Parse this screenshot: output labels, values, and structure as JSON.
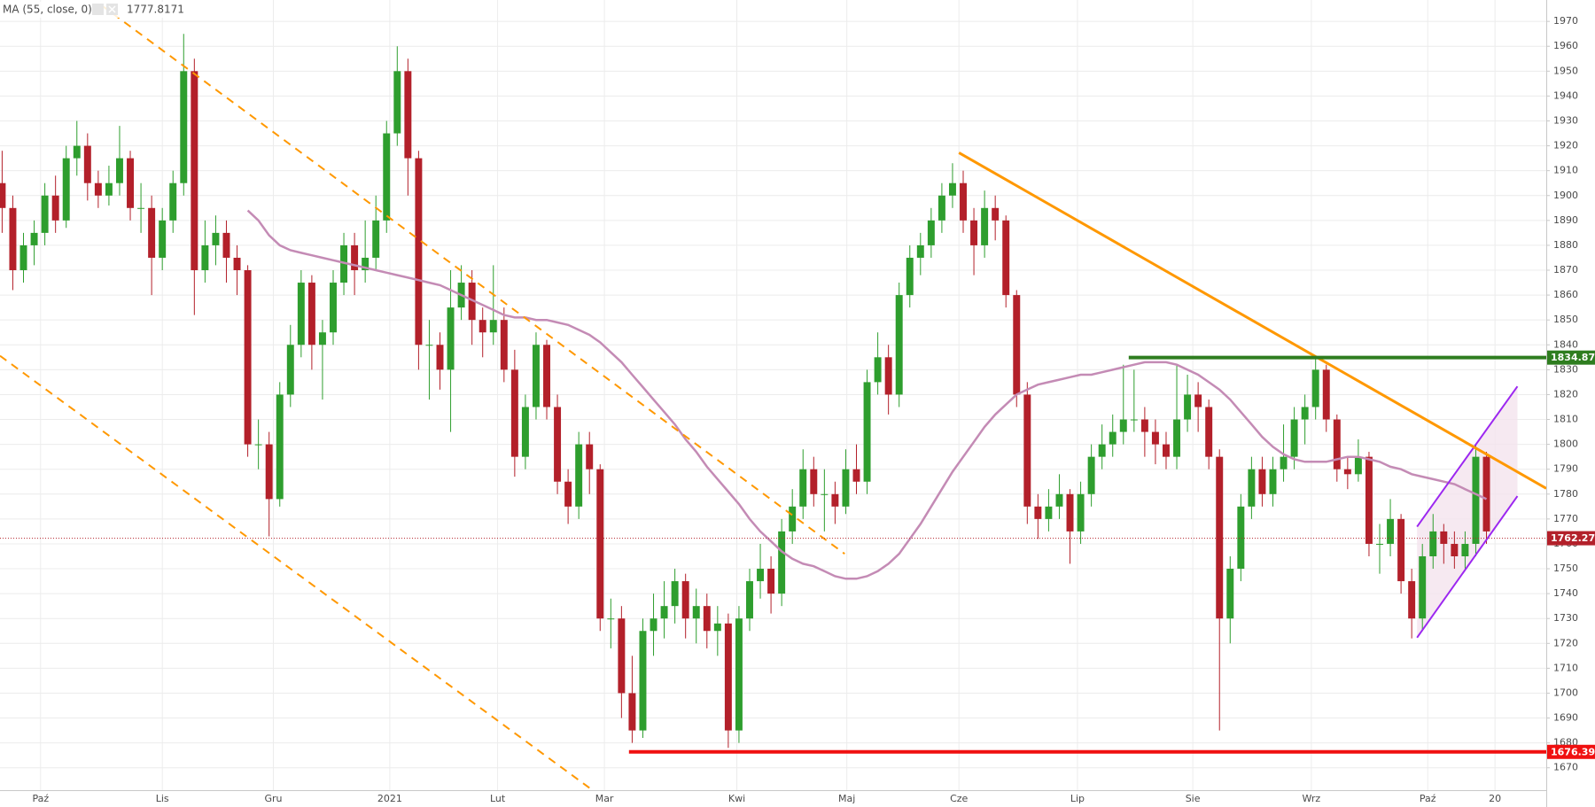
{
  "chart_data": {
    "type": "candlestick",
    "up_color": "#2e9e2e",
    "down_color": "#b3202a",
    "ylim": [
      1661,
      1978.6
    ],
    "yticks": [
      1670,
      1680,
      1690,
      1700,
      1710,
      1720,
      1730,
      1740,
      1750,
      1760,
      1770,
      1780,
      1790,
      1800,
      1810,
      1820,
      1830,
      1840,
      1850,
      1860,
      1870,
      1880,
      1890,
      1900,
      1910,
      1920,
      1930,
      1940,
      1950,
      1960,
      1970
    ],
    "xlim": [
      -0.2,
      144.6
    ],
    "xticks": [
      {
        "value": 3.6,
        "label": "Paź"
      },
      {
        "value": 15,
        "label": "Lis"
      },
      {
        "value": 25.4,
        "label": "Gru"
      },
      {
        "value": 36.3,
        "label": "2021"
      },
      {
        "value": 46.4,
        "label": "Lut"
      },
      {
        "value": 56.4,
        "label": "Mar"
      },
      {
        "value": 68.8,
        "label": "Kwi"
      },
      {
        "value": 79.1,
        "label": "Maj"
      },
      {
        "value": 89.6,
        "label": "Cze"
      },
      {
        "value": 100.7,
        "label": "Lip"
      },
      {
        "value": 111.5,
        "label": "Sie"
      },
      {
        "value": 122.6,
        "label": "Wrz"
      },
      {
        "value": 133.5,
        "label": "Paź"
      },
      {
        "value": 139.8,
        "label": "20"
      }
    ],
    "grid": true,
    "ohlc": [
      [
        1905,
        1918,
        1885,
        1895
      ],
      [
        1895,
        1900,
        1862,
        1870
      ],
      [
        1870,
        1885,
        1865,
        1880
      ],
      [
        1880,
        1890,
        1872,
        1885
      ],
      [
        1885,
        1905,
        1880,
        1900
      ],
      [
        1900,
        1908,
        1885,
        1890
      ],
      [
        1890,
        1920,
        1887,
        1915
      ],
      [
        1915,
        1930,
        1908,
        1920
      ],
      [
        1920,
        1925,
        1898,
        1905
      ],
      [
        1905,
        1910,
        1895,
        1900
      ],
      [
        1900,
        1912,
        1896,
        1905
      ],
      [
        1905,
        1928,
        1900,
        1915
      ],
      [
        1915,
        1918,
        1890,
        1895
      ],
      [
        1895,
        1905,
        1885,
        1895
      ],
      [
        1895,
        1900,
        1860,
        1875
      ],
      [
        1875,
        1895,
        1870,
        1890
      ],
      [
        1890,
        1910,
        1885,
        1905
      ],
      [
        1905,
        1965,
        1900,
        1950
      ],
      [
        1950,
        1955,
        1852,
        1870
      ],
      [
        1870,
        1890,
        1865,
        1880
      ],
      [
        1880,
        1892,
        1872,
        1885
      ],
      [
        1885,
        1890,
        1865,
        1875
      ],
      [
        1875,
        1880,
        1860,
        1870
      ],
      [
        1870,
        1872,
        1795,
        1800
      ],
      [
        1800,
        1810,
        1790,
        1800
      ],
      [
        1800,
        1805,
        1763,
        1778
      ],
      [
        1778,
        1825,
        1775,
        1820
      ],
      [
        1820,
        1848,
        1815,
        1840
      ],
      [
        1840,
        1870,
        1835,
        1865
      ],
      [
        1865,
        1868,
        1830,
        1840
      ],
      [
        1840,
        1850,
        1818,
        1845
      ],
      [
        1845,
        1870,
        1840,
        1865
      ],
      [
        1865,
        1885,
        1860,
        1880
      ],
      [
        1880,
        1885,
        1860,
        1870
      ],
      [
        1870,
        1890,
        1865,
        1875
      ],
      [
        1875,
        1900,
        1870,
        1890
      ],
      [
        1890,
        1930,
        1885,
        1925
      ],
      [
        1925,
        1960,
        1920,
        1950
      ],
      [
        1950,
        1955,
        1900,
        1915
      ],
      [
        1915,
        1918,
        1830,
        1840
      ],
      [
        1840,
        1850,
        1818,
        1840
      ],
      [
        1840,
        1845,
        1822,
        1830
      ],
      [
        1830,
        1870,
        1805,
        1855
      ],
      [
        1855,
        1872,
        1850,
        1865
      ],
      [
        1865,
        1870,
        1840,
        1850
      ],
      [
        1850,
        1855,
        1835,
        1845
      ],
      [
        1845,
        1872,
        1840,
        1850
      ],
      [
        1850,
        1855,
        1825,
        1830
      ],
      [
        1830,
        1838,
        1787,
        1795
      ],
      [
        1795,
        1820,
        1790,
        1815
      ],
      [
        1815,
        1845,
        1810,
        1840
      ],
      [
        1840,
        1842,
        1810,
        1815
      ],
      [
        1815,
        1820,
        1780,
        1785
      ],
      [
        1785,
        1790,
        1768,
        1775
      ],
      [
        1775,
        1805,
        1770,
        1800
      ],
      [
        1800,
        1805,
        1780,
        1790
      ],
      [
        1790,
        1792,
        1725,
        1730
      ],
      [
        1730,
        1738,
        1718,
        1730
      ],
      [
        1730,
        1735,
        1690,
        1700
      ],
      [
        1700,
        1715,
        1680,
        1685
      ],
      [
        1685,
        1730,
        1682,
        1725
      ],
      [
        1725,
        1740,
        1715,
        1730
      ],
      [
        1730,
        1745,
        1722,
        1735
      ],
      [
        1735,
        1750,
        1728,
        1745
      ],
      [
        1745,
        1748,
        1722,
        1730
      ],
      [
        1730,
        1742,
        1720,
        1735
      ],
      [
        1735,
        1740,
        1718,
        1725
      ],
      [
        1725,
        1735,
        1715,
        1728
      ],
      [
        1728,
        1732,
        1678,
        1685
      ],
      [
        1685,
        1735,
        1680,
        1730
      ],
      [
        1730,
        1750,
        1725,
        1745
      ],
      [
        1745,
        1760,
        1738,
        1750
      ],
      [
        1750,
        1755,
        1732,
        1740
      ],
      [
        1740,
        1770,
        1735,
        1765
      ],
      [
        1765,
        1782,
        1760,
        1775
      ],
      [
        1775,
        1798,
        1770,
        1790
      ],
      [
        1790,
        1795,
        1775,
        1780
      ],
      [
        1780,
        1790,
        1765,
        1780
      ],
      [
        1780,
        1785,
        1768,
        1775
      ],
      [
        1775,
        1798,
        1772,
        1790
      ],
      [
        1790,
        1800,
        1780,
        1785
      ],
      [
        1785,
        1830,
        1780,
        1825
      ],
      [
        1825,
        1845,
        1820,
        1835
      ],
      [
        1835,
        1840,
        1812,
        1820
      ],
      [
        1820,
        1865,
        1815,
        1860
      ],
      [
        1860,
        1880,
        1855,
        1875
      ],
      [
        1875,
        1885,
        1868,
        1880
      ],
      [
        1880,
        1895,
        1875,
        1890
      ],
      [
        1890,
        1905,
        1885,
        1900
      ],
      [
        1900,
        1913,
        1895,
        1905
      ],
      [
        1905,
        1910,
        1885,
        1890
      ],
      [
        1890,
        1895,
        1868,
        1880
      ],
      [
        1880,
        1902,
        1875,
        1895
      ],
      [
        1895,
        1900,
        1882,
        1890
      ],
      [
        1890,
        1892,
        1855,
        1860
      ],
      [
        1860,
        1862,
        1815,
        1820
      ],
      [
        1820,
        1825,
        1768,
        1775
      ],
      [
        1775,
        1780,
        1762,
        1770
      ],
      [
        1770,
        1782,
        1765,
        1775
      ],
      [
        1775,
        1788,
        1770,
        1780
      ],
      [
        1780,
        1782,
        1752,
        1765
      ],
      [
        1765,
        1785,
        1760,
        1780
      ],
      [
        1780,
        1800,
        1775,
        1795
      ],
      [
        1795,
        1808,
        1790,
        1800
      ],
      [
        1800,
        1812,
        1795,
        1805
      ],
      [
        1805,
        1832,
        1800,
        1810
      ],
      [
        1810,
        1830,
        1805,
        1810
      ],
      [
        1810,
        1815,
        1795,
        1805
      ],
      [
        1805,
        1810,
        1792,
        1800
      ],
      [
        1800,
        1805,
        1790,
        1795
      ],
      [
        1795,
        1832,
        1790,
        1810
      ],
      [
        1810,
        1828,
        1805,
        1820
      ],
      [
        1820,
        1825,
        1805,
        1815
      ],
      [
        1815,
        1818,
        1790,
        1795
      ],
      [
        1795,
        1798,
        1685,
        1730
      ],
      [
        1730,
        1755,
        1720,
        1750
      ],
      [
        1750,
        1780,
        1745,
        1775
      ],
      [
        1775,
        1795,
        1770,
        1790
      ],
      [
        1790,
        1795,
        1775,
        1780
      ],
      [
        1780,
        1795,
        1775,
        1790
      ],
      [
        1790,
        1808,
        1785,
        1795
      ],
      [
        1795,
        1815,
        1790,
        1810
      ],
      [
        1810,
        1820,
        1800,
        1815
      ],
      [
        1815,
        1835,
        1810,
        1830
      ],
      [
        1830,
        1832,
        1805,
        1810
      ],
      [
        1810,
        1812,
        1785,
        1790
      ],
      [
        1790,
        1795,
        1782,
        1788
      ],
      [
        1788,
        1802,
        1785,
        1795
      ],
      [
        1795,
        1797,
        1755,
        1760
      ],
      [
        1760,
        1768,
        1748,
        1760
      ],
      [
        1760,
        1778,
        1755,
        1770
      ],
      [
        1770,
        1772,
        1740,
        1745
      ],
      [
        1745,
        1750,
        1722,
        1730
      ],
      [
        1730,
        1760,
        1725,
        1755
      ],
      [
        1755,
        1772,
        1750,
        1765
      ],
      [
        1765,
        1768,
        1752,
        1760
      ],
      [
        1760,
        1765,
        1750,
        1755
      ],
      [
        1755,
        1765,
        1750,
        1760
      ],
      [
        1760,
        1800,
        1755,
        1795
      ],
      [
        1795,
        1797,
        1760,
        1765
      ]
    ],
    "series": [
      {
        "name": "MA (55, close, 0)",
        "color": "#c48bb5",
        "values": [
          null,
          null,
          null,
          null,
          null,
          null,
          null,
          null,
          null,
          null,
          null,
          null,
          null,
          null,
          null,
          null,
          null,
          null,
          null,
          null,
          null,
          null,
          null,
          1894,
          1890,
          1884,
          1880,
          1878,
          1877,
          1876,
          1875,
          1874,
          1873,
          1872,
          1871,
          1870,
          1869,
          1868,
          1867,
          1866,
          1865,
          1864,
          1862,
          1860,
          1858,
          1856,
          1854,
          1852,
          1851,
          1851,
          1850,
          1850,
          1849,
          1848,
          1846,
          1844,
          1841,
          1837,
          1833,
          1828,
          1823,
          1818,
          1813,
          1808,
          1802,
          1797,
          1791,
          1786,
          1781,
          1776,
          1770,
          1765,
          1761,
          1757,
          1754,
          1752,
          1751,
          1749,
          1747,
          1746,
          1746,
          1747,
          1749,
          1752,
          1756,
          1762,
          1768,
          1775,
          1782,
          1789,
          1795,
          1801,
          1807,
          1812,
          1816,
          1820,
          1822,
          1824,
          1825,
          1826,
          1827,
          1828,
          1828,
          1829,
          1830,
          1831,
          1832,
          1833,
          1833,
          1833,
          1832,
          1830,
          1828,
          1825,
          1822,
          1818,
          1813,
          1808,
          1803,
          1799,
          1796,
          1794,
          1793,
          1793,
          1793,
          1794,
          1795,
          1795,
          1794,
          1793,
          1791,
          1790,
          1788,
          1787,
          1786,
          1785,
          1784,
          1782,
          1780,
          1778
        ]
      }
    ],
    "ma_value": 1777.8171,
    "ma_value_color": "#c2306b",
    "last_price": 1762.27,
    "last_price_color": "#b3202a",
    "levels": [
      {
        "value": 1834.87,
        "color": "#2e7d1f",
        "from": 105.5
      },
      {
        "value": 1676.39,
        "color": "#f01010",
        "from": 58.7
      }
    ],
    "trendlines": [
      {
        "color": "#ff9800",
        "dashed": false,
        "x": [
          89.6,
          144.6
        ],
        "y": [
          1917.2,
          1782.3
        ]
      },
      {
        "color": "#ff9800",
        "dashed": true,
        "x": [
          9.3,
          78.9
        ],
        "y": [
          1976.5,
          1756
        ]
      },
      {
        "color": "#ff9800",
        "dashed": true,
        "x": [
          -0.2,
          55.0
        ],
        "y": [
          1835.6,
          1661.9
        ]
      }
    ],
    "channel": {
      "color": "#9c27f0",
      "fill": "#f4e4ee",
      "x": [
        132.5,
        141.9
      ],
      "upper": [
        1766.9,
        1823.3
      ],
      "lower": [
        1722.3,
        1779.2
      ]
    }
  }
}
